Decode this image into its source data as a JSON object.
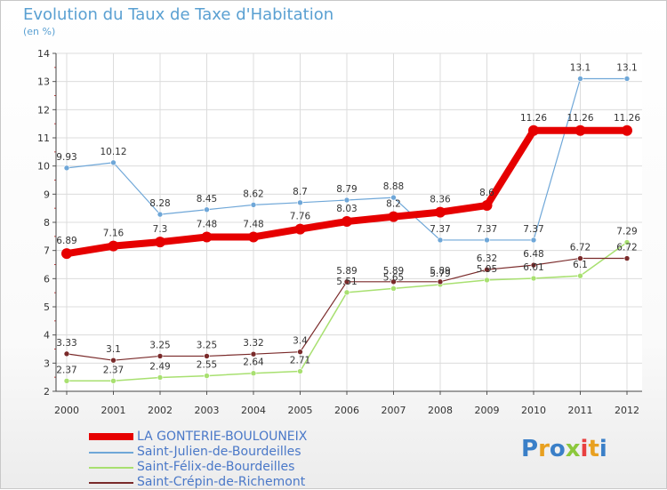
{
  "title": "Evolution du Taux de Taxe d'Habitation",
  "subtitle": "(en %)",
  "logo": {
    "text": "Proxiti",
    "colors": [
      "#3a7fc8",
      "#e8a020",
      "#3a7fc8",
      "#8cc83c",
      "#e84040",
      "#e8a020",
      "#3a7fc8"
    ]
  },
  "chart_data": {
    "type": "line",
    "title": "Evolution du Taux de Taxe d'Habitation",
    "ylabel": "(en %)",
    "xlabel": "",
    "ylim": [
      2,
      14
    ],
    "yticks": [
      "2",
      "3",
      "4",
      "5",
      "6",
      "7",
      "8",
      "9",
      "10",
      "11",
      "12",
      "13",
      "14"
    ],
    "categories": [
      "2000",
      "2001",
      "2002",
      "2003",
      "2004",
      "2005",
      "2006",
      "2007",
      "2008",
      "2009",
      "2010",
      "2011",
      "2012"
    ],
    "grid": true,
    "legend_position": "bottom-left",
    "series": [
      {
        "name": "LA GONTERIE-BOULOUNEIX",
        "color": "#e60000",
        "values": [
          6.89,
          7.16,
          7.3,
          7.48,
          7.48,
          7.76,
          8.03,
          8.2,
          8.36,
          8.6,
          11.26,
          11.26,
          11.26
        ],
        "labels": [
          "6.89",
          "7.16",
          "7.3",
          "7.48",
          "7.48",
          "7.76",
          "8.03",
          "8.2",
          "8.36",
          "8.6",
          "11.26",
          "11.26",
          "11.26"
        ]
      },
      {
        "name": "Saint-Julien-de-Bourdeilles",
        "color": "#6fa7d8",
        "values": [
          9.93,
          10.12,
          8.28,
          8.45,
          8.62,
          8.7,
          8.79,
          8.88,
          7.37,
          7.37,
          7.37,
          13.1,
          13.1
        ],
        "labels": [
          "9.93",
          "10.12",
          "8.28",
          "8.45",
          "8.62",
          "8.7",
          "8.79",
          "8.88",
          "7.37",
          "7.37",
          "7.37",
          "13.1",
          "13.1"
        ]
      },
      {
        "name": "Saint-Félix-de-Bourdeilles",
        "color": "#a8e070",
        "values": [
          2.37,
          2.37,
          2.49,
          2.55,
          2.64,
          2.71,
          5.51,
          5.65,
          5.79,
          5.95,
          6.01,
          6.1,
          7.29
        ],
        "labels": [
          "2.37",
          "2.37",
          "2.49",
          "2.55",
          "2.64",
          "2.71",
          "5.51",
          "5.65",
          "5.79",
          "5.95",
          "6.01",
          "6.1",
          "7.29"
        ]
      },
      {
        "name": "Saint-Crépin-de-Richemont",
        "color": "#7a2a2a",
        "values": [
          3.33,
          3.1,
          3.25,
          3.25,
          3.32,
          3.4,
          5.89,
          5.89,
          5.89,
          6.32,
          6.48,
          6.72,
          6.72
        ],
        "labels": [
          "3.33",
          "3.1",
          "3.25",
          "3.25",
          "3.32",
          "3.4",
          "5.89",
          "5.89",
          "5.89",
          "6.32",
          "6.48",
          "6.72",
          "6.72"
        ]
      }
    ]
  }
}
